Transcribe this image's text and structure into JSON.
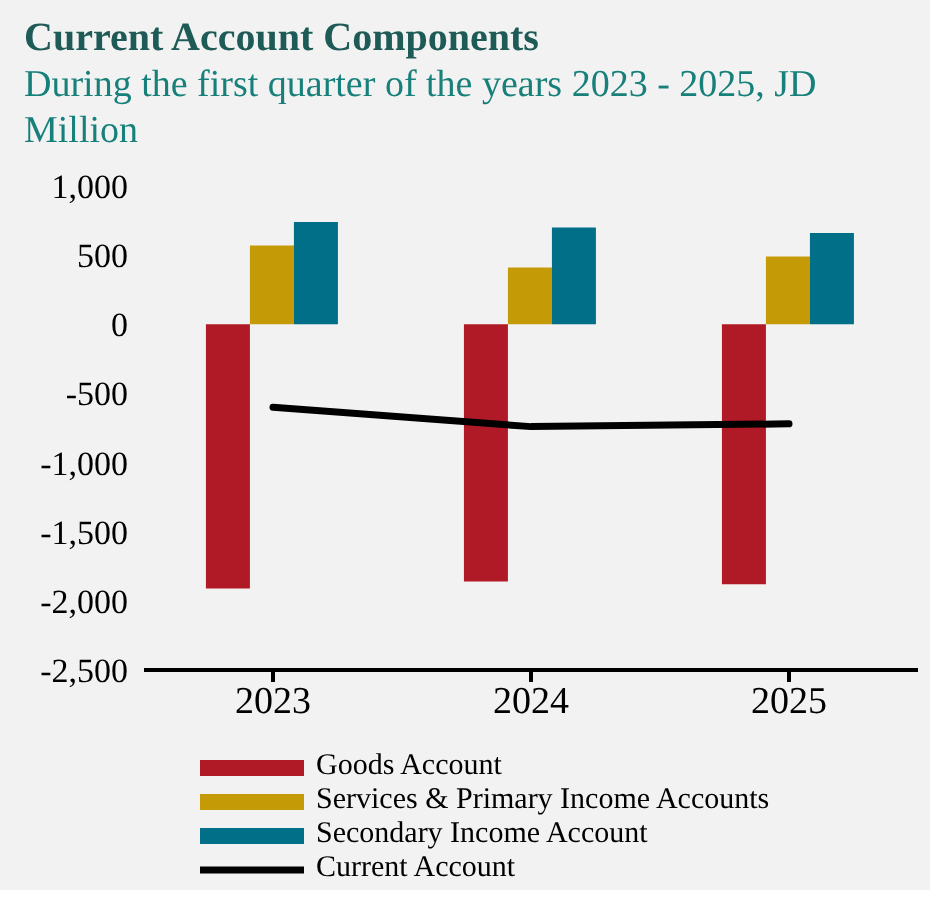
{
  "chart_data": {
    "type": "bar",
    "title": "Current Account Components",
    "subtitle": "During the first quarter of the years 2023 - 2025, JD Million",
    "categories": [
      "2023",
      "2024",
      "2025"
    ],
    "series": [
      {
        "name": "Goods Account",
        "color": "#b01a26",
        "values": [
          -1910,
          -1860,
          -1880
        ]
      },
      {
        "name": "Services & Primary Income Accounts",
        "color": "#c49a06",
        "values": [
          570,
          410,
          490
        ]
      },
      {
        "name": "Secondary Income Account",
        "color": "#006f87",
        "values": [
          740,
          700,
          660
        ]
      },
      {
        "name": "Current Account",
        "type": "line",
        "color": "#000000",
        "values": [
          -600,
          -740,
          -720
        ]
      }
    ],
    "ylim": [
      -2500,
      1000
    ],
    "yticks": [
      {
        "value": -2500,
        "label": "-2,500"
      },
      {
        "value": -2000,
        "label": "-2,000"
      },
      {
        "value": -1500,
        "label": "-1,500"
      },
      {
        "value": -1000,
        "label": "-1,000"
      },
      {
        "value": -500,
        "label": "-500"
      },
      0,
      500,
      {
        "value": 1000,
        "label": "1,000"
      }
    ],
    "grid": false,
    "legend": "bottom",
    "marker": "none",
    "line_style": "solid"
  }
}
